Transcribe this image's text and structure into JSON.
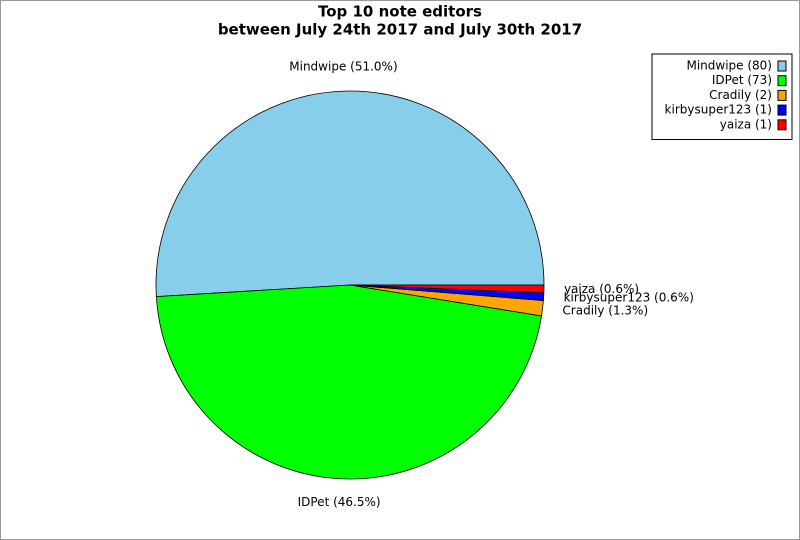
{
  "chart_data": {
    "type": "pie",
    "title": "Top 10 note editors",
    "subtitle": "between July 24th 2017 and July 30th 2017",
    "categories": [
      "Mindwipe",
      "IDPet",
      "Cradily",
      "kirbysuper123",
      "yaiza"
    ],
    "values": [
      80,
      73,
      2,
      1,
      1
    ],
    "value_labels": [
      "Mindwipe (80)",
      "IDPet (73)",
      "Cradily (2)",
      "kirbysuper123 (1)",
      "yaiza (1)"
    ],
    "slice_labels": [
      "Mindwipe (51.0%)",
      "IDPet (46.5%)",
      "Cradily (1.3%)",
      "kirbysuper123 (0.6%)",
      "yaiza (0.6%)"
    ],
    "colors": [
      "#87ceeb",
      "#00ff00",
      "#ffa500",
      "#0000ff",
      "#ff0000"
    ],
    "legend": "upper right"
  }
}
